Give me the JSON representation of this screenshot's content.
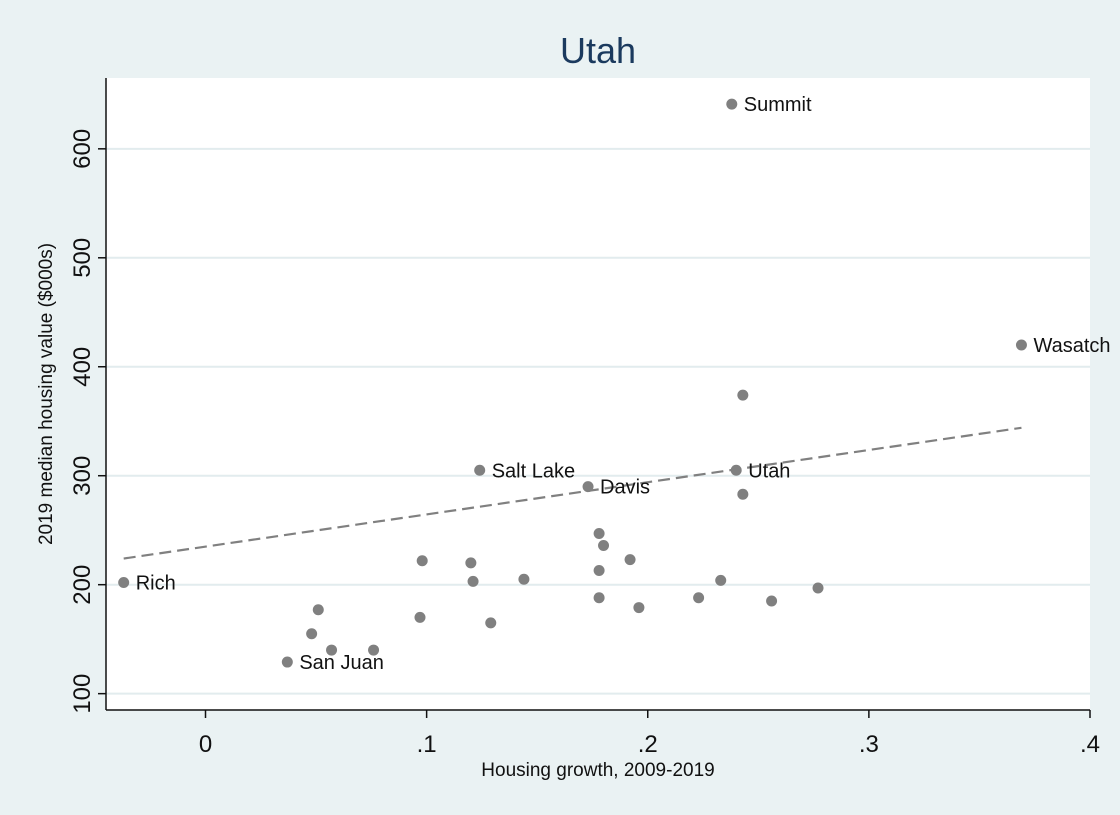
{
  "chart_data": {
    "type": "scatter",
    "title": "Utah",
    "xlabel": "Housing growth, 2009-2019",
    "ylabel": "2019 median housing value ($000s)",
    "xlim": [
      -0.045,
      0.4
    ],
    "ylim": [
      85,
      665
    ],
    "x_ticks": [
      0,
      0.1,
      0.2,
      0.3,
      0.4
    ],
    "x_tick_labels": [
      "0",
      ".1",
      ".2",
      ".3",
      ".4"
    ],
    "y_ticks": [
      100,
      200,
      300,
      400,
      500,
      600
    ],
    "y_tick_labels": [
      "100",
      "200",
      "300",
      "400",
      "500",
      "600"
    ],
    "grid": "horizontal",
    "legend": "none",
    "colors": {
      "background": "#eaf2f3",
      "plot_area": "#ffffff",
      "gridline": "#e2ecee",
      "marker": "#808080",
      "fit_line": "#808080",
      "title": "#1b3a5e"
    },
    "points": [
      {
        "x": 0.238,
        "y": 641,
        "label": "Summit"
      },
      {
        "x": 0.369,
        "y": 420,
        "label": "Wasatch"
      },
      {
        "x": 0.243,
        "y": 374,
        "label": ""
      },
      {
        "x": 0.124,
        "y": 305,
        "label": "Salt Lake"
      },
      {
        "x": 0.24,
        "y": 305,
        "label": "Utah"
      },
      {
        "x": 0.173,
        "y": 290,
        "label": "Davis"
      },
      {
        "x": 0.243,
        "y": 283,
        "label": ""
      },
      {
        "x": -0.037,
        "y": 202,
        "label": "Rich"
      },
      {
        "x": 0.037,
        "y": 129,
        "label": "San Juan"
      },
      {
        "x": 0.178,
        "y": 247,
        "label": ""
      },
      {
        "x": 0.18,
        "y": 236,
        "label": ""
      },
      {
        "x": 0.098,
        "y": 222,
        "label": ""
      },
      {
        "x": 0.12,
        "y": 220,
        "label": ""
      },
      {
        "x": 0.192,
        "y": 223,
        "label": ""
      },
      {
        "x": 0.178,
        "y": 213,
        "label": ""
      },
      {
        "x": 0.144,
        "y": 205,
        "label": ""
      },
      {
        "x": 0.121,
        "y": 203,
        "label": ""
      },
      {
        "x": 0.233,
        "y": 204,
        "label": ""
      },
      {
        "x": 0.277,
        "y": 197,
        "label": ""
      },
      {
        "x": 0.178,
        "y": 188,
        "label": ""
      },
      {
        "x": 0.223,
        "y": 188,
        "label": ""
      },
      {
        "x": 0.256,
        "y": 185,
        "label": ""
      },
      {
        "x": 0.196,
        "y": 179,
        "label": ""
      },
      {
        "x": 0.051,
        "y": 177,
        "label": ""
      },
      {
        "x": 0.097,
        "y": 170,
        "label": ""
      },
      {
        "x": 0.129,
        "y": 165,
        "label": ""
      },
      {
        "x": 0.048,
        "y": 155,
        "label": ""
      },
      {
        "x": 0.057,
        "y": 140,
        "label": ""
      },
      {
        "x": 0.076,
        "y": 140,
        "label": ""
      }
    ],
    "fit_line": {
      "x": [
        -0.037,
        0.369
      ],
      "y": [
        224,
        344
      ],
      "style": "dashed"
    }
  }
}
